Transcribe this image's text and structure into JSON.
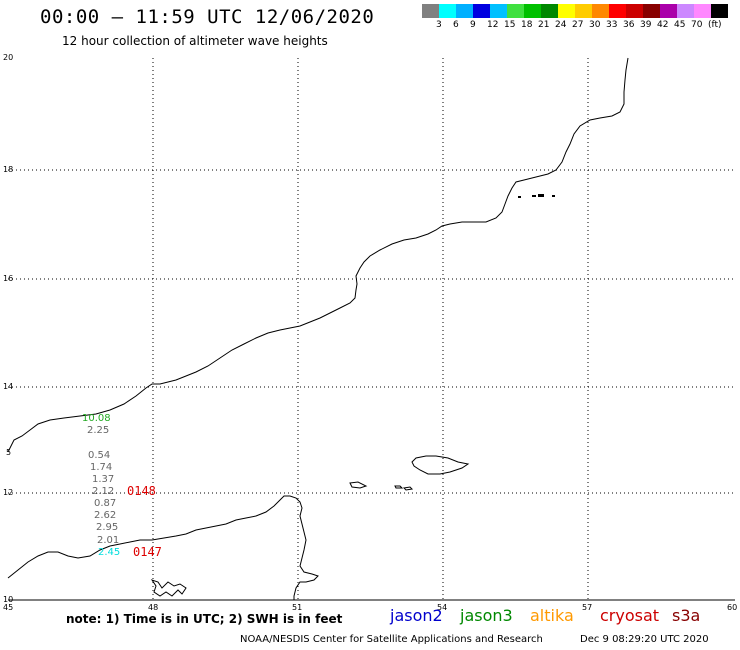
{
  "header": {
    "title": "00:00 – 11:59 UTC 12/06/2020",
    "subtitle": "12 hour collection of altimeter wave heights"
  },
  "color_scale": {
    "colors": [
      "#808080",
      "#00ffff",
      "#00b0ff",
      "#0000e0",
      "#00c0ff",
      "#40e040",
      "#00c000",
      "#008800",
      "#ffff00",
      "#ffcc00",
      "#ff8800",
      "#ff0000",
      "#cc0000",
      "#880000",
      "#aa00aa",
      "#cc88ff",
      "#ff88ff",
      "#000000"
    ],
    "labels": [
      "3",
      "6",
      "9",
      "12",
      "15",
      "18",
      "21",
      "24",
      "27",
      "30",
      "33",
      "36",
      "39",
      "42",
      "45",
      "70",
      "(ft)"
    ]
  },
  "map": {
    "x_ticks": [
      "45",
      "48",
      "51",
      "54",
      "57",
      "60"
    ],
    "y_ticks": [
      "20",
      "18",
      "16",
      "14",
      "12",
      "10"
    ],
    "extra_y_label": "5",
    "swh_labels": [
      {
        "text": "10.08",
        "color": "#22aa22"
      },
      {
        "text": "2.25",
        "color": "#666666"
      },
      {
        "text": "0.54",
        "color": "#666666"
      },
      {
        "text": "1.74",
        "color": "#666666"
      },
      {
        "text": "1.37",
        "color": "#666666"
      },
      {
        "text": "2.12",
        "color": "#666666"
      },
      {
        "text": "0.87",
        "color": "#666666"
      },
      {
        "text": "2.62",
        "color": "#666666"
      },
      {
        "text": "2.95",
        "color": "#666666"
      },
      {
        "text": "2.01",
        "color": "#666666"
      },
      {
        "text": "2.45",
        "color": "#00dddd"
      }
    ],
    "time_labels": [
      {
        "text": "0148",
        "color": "#dd0000"
      },
      {
        "text": "0147",
        "color": "#dd0000"
      }
    ]
  },
  "legend": {
    "note": "note: 1) Time is in UTC; 2) SWH is in feet",
    "missions": [
      {
        "name": "jason2",
        "color": "#0000cc"
      },
      {
        "name": "jason3",
        "color": "#008800"
      },
      {
        "name": "altika",
        "color": "#ff9900"
      },
      {
        "name": "cryosat",
        "color": "#cc0000"
      },
      {
        "name": "s3a",
        "color": "#880000"
      }
    ]
  },
  "footer": {
    "credit": "NOAA/NESDIS Center for Satellite Applications and Research",
    "timestamp": "Dec  9 08:29:20 UTC 2020"
  }
}
